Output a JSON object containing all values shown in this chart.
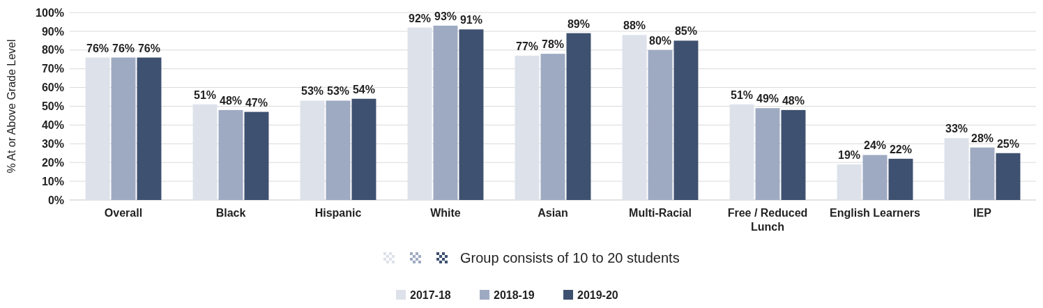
{
  "chart_data": {
    "type": "bar",
    "ylabel": "% At or Above Grade Level",
    "categories": [
      "Overall",
      "Black",
      "Hispanic",
      "White",
      "Asian",
      "Multi-Racial",
      "Free / Reduced Lunch",
      "English Learners",
      "IEP"
    ],
    "series": [
      {
        "name": "2017-18",
        "color": "#dde1ea",
        "values": [
          76,
          51,
          53,
          92,
          77,
          88,
          51,
          19,
          33
        ],
        "value_labels": [
          "76%",
          "51%",
          "53%",
          "92%",
          "77%",
          "88%",
          "51%",
          "19%",
          "33%"
        ]
      },
      {
        "name": "2018-19",
        "color": "#9eaac2",
        "values": [
          76,
          48,
          53,
          93,
          78,
          80,
          49,
          24,
          28
        ],
        "value_labels": [
          "76%",
          "48%",
          "53%",
          "93%",
          "78%",
          "80%",
          "49%",
          "24%",
          "28%"
        ]
      },
      {
        "name": "2019-20",
        "color": "#3f5170",
        "values": [
          76,
          47,
          54,
          91,
          89,
          85,
          48,
          22,
          25
        ],
        "value_labels": [
          "76%",
          "47%",
          "54%",
          "91%",
          "89%",
          "85%",
          "48%",
          "22%",
          "25%"
        ]
      }
    ],
    "ylim": [
      0,
      100
    ],
    "yticks": [
      {
        "value": 0,
        "label": "0%"
      },
      {
        "value": 10,
        "label": "10%"
      },
      {
        "value": 20,
        "label": "20%"
      },
      {
        "value": 30,
        "label": "30%"
      },
      {
        "value": 40,
        "label": "40%"
      },
      {
        "value": 50,
        "label": "50%"
      },
      {
        "value": 60,
        "label": "60%"
      },
      {
        "value": 70,
        "label": "70%"
      },
      {
        "value": 80,
        "label": "80%"
      },
      {
        "value": 90,
        "label": "90%"
      },
      {
        "value": 100,
        "label": "100%"
      }
    ],
    "grid": "y",
    "legend": "bottom",
    "annotations": [
      "Group consists of 10 to 20 students"
    ]
  }
}
